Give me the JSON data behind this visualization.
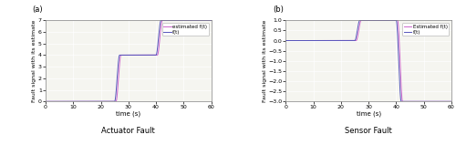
{
  "fig_width": 5.0,
  "fig_height": 1.59,
  "dpi": 100,
  "background_color": "#f5f5f0",
  "subplot_a": {
    "label": "(a)",
    "xlabel": "time (s)",
    "ylabel": "Fault signal with its estimate",
    "title": "Actuator Fault",
    "xlim": [
      0,
      60
    ],
    "ylim": [
      0,
      7
    ],
    "xticks": [
      0,
      10,
      20,
      30,
      40,
      50,
      60
    ],
    "yticks": [
      0,
      1,
      2,
      3,
      4,
      5,
      6,
      7
    ],
    "step1_time": 25,
    "step1_val": 4,
    "step2_time": 40,
    "step2_val": 7,
    "start_val": 0,
    "rise_time": 1.8,
    "color_true": "#5555bb",
    "color_est": "#cc66cc",
    "lw_true": 0.7,
    "lw_est": 0.7,
    "legend_true": "f(t)",
    "legend_est": "estimated f(t)"
  },
  "subplot_b": {
    "label": "(b)",
    "xlabel": "time (s)",
    "ylabel": "Fault signal with its estimate",
    "title": "Sensor Fault",
    "xlim": [
      0,
      60
    ],
    "ylim": [
      -3,
      1
    ],
    "xticks": [
      0,
      10,
      20,
      30,
      40,
      50,
      60
    ],
    "yticks": [
      -3,
      -2.5,
      -2,
      -1.5,
      -1,
      -0.5,
      0,
      0.5,
      1
    ],
    "step1_time": 25,
    "step1_val": 1,
    "step2_time": 40,
    "step2_val": -3,
    "start_val": 0,
    "rise_time": 1.8,
    "color_true": "#5555bb",
    "color_est": "#cc66cc",
    "lw_true": 0.7,
    "lw_est": 0.7,
    "legend_true": "f(t)",
    "legend_est": "Estimated f(t)"
  }
}
